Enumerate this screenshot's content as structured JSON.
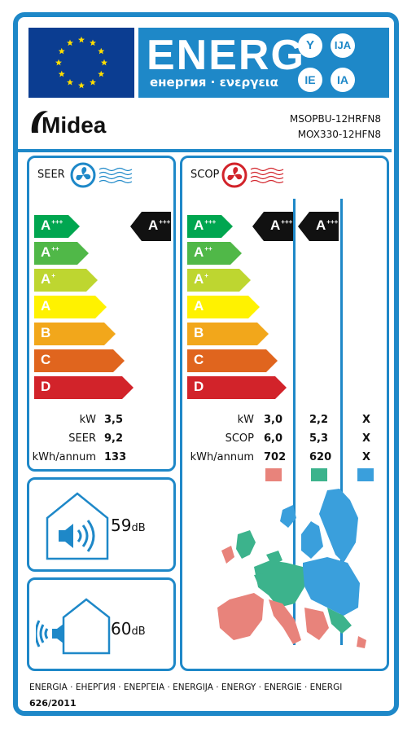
{
  "header": {
    "energy_word": "ENERG",
    "energy_subtitle": "енергия · ενεργεια",
    "suffixes": [
      "Y",
      "IJA",
      "IE",
      "IA"
    ]
  },
  "brand": {
    "logo_text": "Midea",
    "model_indoor": "MSOPBU-12HRFN8",
    "model_outdoor": "MOX330-12HFN8"
  },
  "cooling": {
    "title": "SEER",
    "classes": [
      {
        "letter": "A",
        "plus": "+++",
        "color": "#00a650"
      },
      {
        "letter": "A",
        "plus": "++",
        "color": "#50b848"
      },
      {
        "letter": "A",
        "plus": "+",
        "color": "#bed630"
      },
      {
        "letter": "A",
        "plus": "",
        "color": "#fff200"
      },
      {
        "letter": "B",
        "plus": "",
        "color": "#f2a71b"
      },
      {
        "letter": "C",
        "plus": "",
        "color": "#e0651e"
      },
      {
        "letter": "D",
        "plus": "",
        "color": "#d2232a"
      }
    ],
    "rating": {
      "letter": "A",
      "plus": "+++"
    },
    "labels": [
      "kW",
      "SEER",
      "kWh/annum"
    ],
    "values": [
      "3,5",
      "9,2",
      "133"
    ]
  },
  "heating": {
    "title": "SCOP",
    "classes": [
      {
        "letter": "A",
        "plus": "+++",
        "color": "#00a650"
      },
      {
        "letter": "A",
        "plus": "++",
        "color": "#50b848"
      },
      {
        "letter": "A",
        "plus": "+",
        "color": "#bed630"
      },
      {
        "letter": "A",
        "plus": "",
        "color": "#fff200"
      },
      {
        "letter": "B",
        "plus": "",
        "color": "#f2a71b"
      },
      {
        "letter": "C",
        "plus": "",
        "color": "#e0651e"
      },
      {
        "letter": "D",
        "plus": "",
        "color": "#d2232a"
      }
    ],
    "ratings": [
      {
        "letter": "A",
        "plus": "+++"
      },
      {
        "letter": "A",
        "plus": "+++"
      }
    ],
    "labels": [
      "kW",
      "SCOP",
      "kWh/annum"
    ],
    "columns": [
      {
        "values": [
          "3,0",
          "6,0",
          "702"
        ],
        "swatch": "#e8837b"
      },
      {
        "values": [
          "2,2",
          "5,3",
          "620"
        ],
        "swatch": "#3cb38c"
      },
      {
        "values": [
          "X",
          "X",
          "X"
        ],
        "swatch": "#3a9fdc"
      }
    ]
  },
  "noise": {
    "indoor_value": "59",
    "indoor_unit": "dB",
    "outdoor_value": "60",
    "outdoor_unit": "dB"
  },
  "colors": {
    "frame_blue": "#1e88c8",
    "eu_blue": "#0b3d91",
    "star_yellow": "#ffde00",
    "badge_black": "#111111"
  },
  "footer": {
    "languages": "ENERGIA · ЕНЕРГИЯ · ΕΝΕΡΓΕΙΑ · ENERGIJA · ENERGY · ENERGIE · ENERGI",
    "regulation": "626/2011"
  }
}
